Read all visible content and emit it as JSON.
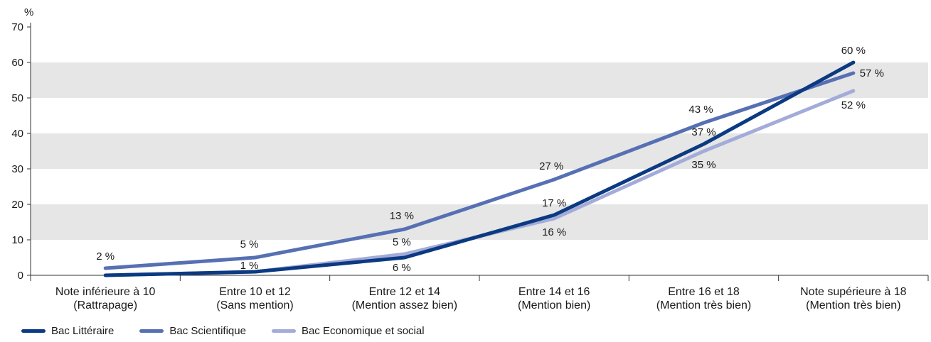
{
  "chart_data": {
    "type": "line",
    "ylabel": "%",
    "ylim": [
      0,
      70
    ],
    "yticks": [
      0,
      10,
      20,
      30,
      40,
      50,
      60,
      70
    ],
    "grid": "alternating horizontal bands",
    "legend_position": "bottom-left",
    "categories": [
      [
        "Note inférieure à 10",
        "(Rattrapage)"
      ],
      [
        "Entre 10 et 12",
        "(Sans mention)"
      ],
      [
        "Entre 12 et 14",
        "(Mention assez bien)"
      ],
      [
        "Entre 14 et 16",
        "(Mention bien)"
      ],
      [
        "Entre 16 et 18",
        "(Mention très bien)"
      ],
      [
        "Note supérieure à 18",
        "(Mention très bien)"
      ]
    ],
    "series": [
      {
        "name": "Bac Littéraire",
        "color": "#0b3a82",
        "values": [
          0,
          1,
          5,
          17,
          37,
          60
        ],
        "labels": [
          "",
          "1 %",
          "",
          "17 %",
          "37 %",
          "60 %"
        ]
      },
      {
        "name": "Bac Scientifique",
        "color": "#5670b3",
        "values": [
          2,
          5,
          13,
          27,
          43,
          57
        ],
        "labels": [
          "2 %",
          "5 %",
          "13 %",
          "27 %",
          "43 %",
          "57 %"
        ]
      },
      {
        "name": "Bac Economique et social",
        "color": "#a3acd8",
        "values": [
          0,
          1,
          6,
          16,
          35,
          52
        ],
        "labels": [
          "",
          "",
          "6 %",
          "16 %",
          "35 %",
          "52 %"
        ]
      }
    ],
    "extra_labels": [
      "5 %"
    ]
  }
}
